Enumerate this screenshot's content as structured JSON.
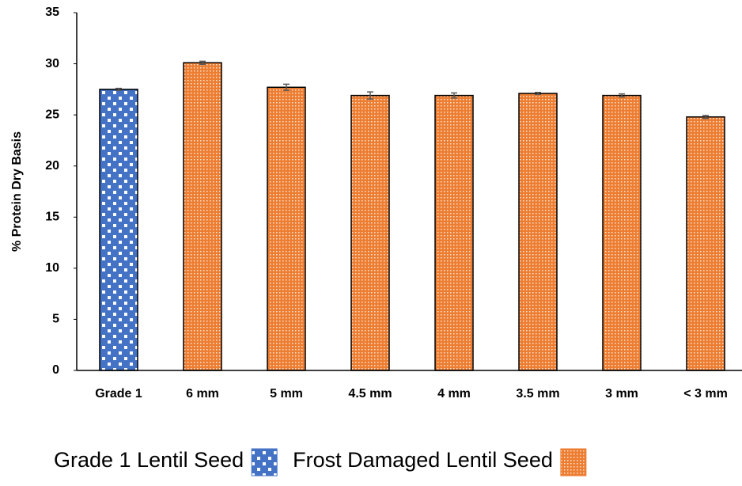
{
  "chart_data": {
    "type": "bar",
    "y_label": "% Protein Dry Basis",
    "categories": [
      "Grade 1",
      "6 mm",
      "5 mm",
      "4.5 mm",
      "4 mm",
      "3.5 mm",
      "3 mm",
      "< 3 mm"
    ],
    "series": [
      {
        "name": "Grade 1 Lentil Seed",
        "color": "#4472c4",
        "values": [
          27.5,
          null,
          null,
          null,
          null,
          null,
          null,
          null
        ],
        "errors": [
          0.1,
          null,
          null,
          null,
          null,
          null,
          null,
          null
        ]
      },
      {
        "name": "Frost Damaged Lentil Seed",
        "color": "#ed7d31",
        "values": [
          null,
          30.1,
          27.7,
          26.9,
          26.9,
          27.1,
          26.9,
          24.8
        ],
        "errors": [
          null,
          0.15,
          0.3,
          0.35,
          0.25,
          0.1,
          0.15,
          0.15
        ]
      }
    ],
    "ylim": [
      0,
      35
    ],
    "yticks": [
      0,
      5,
      10,
      15,
      20,
      25,
      30,
      35
    ],
    "grid": false
  }
}
